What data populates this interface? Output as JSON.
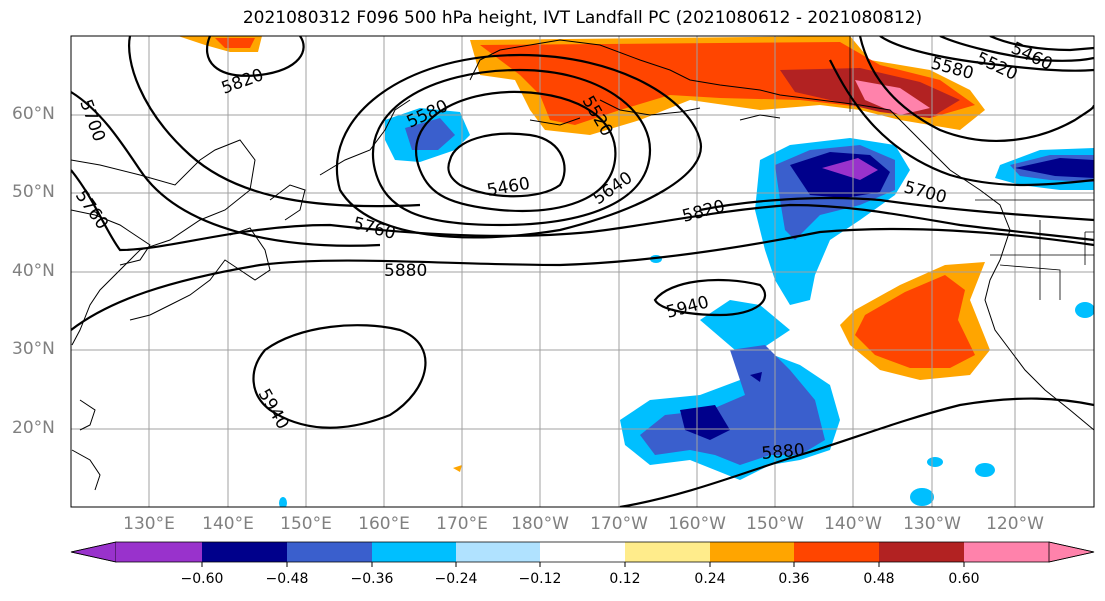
{
  "title": "2021080312 F096 500 hPa height, IVT Landfall PC (2021080612 - 2021080812)",
  "lon_labels": [
    "130°E",
    "140°E",
    "150°E",
    "160°E",
    "170°E",
    "180°W",
    "170°W",
    "160°W",
    "150°W",
    "140°W",
    "130°W",
    "120°W"
  ],
  "lat_labels": [
    "60°N",
    "50°N",
    "40°N",
    "30°N",
    "20°N"
  ],
  "colorbar": {
    "ticks": [
      "−0.60",
      "−0.48",
      "−0.36",
      "−0.24",
      "−0.12",
      "0.12",
      "0.24",
      "0.36",
      "0.48",
      "0.60"
    ],
    "colors": [
      "#9932cc",
      "#00008b",
      "#3a5fcd",
      "#00bfff",
      "#b0e2ff",
      "#ffffff",
      "#ffec8b",
      "#ffa500",
      "#ff4500",
      "#b22222",
      "#ff82ab"
    ]
  },
  "contour_labels": [
    "5820",
    "5700",
    "5760",
    "5580",
    "5520",
    "5460",
    "5640",
    "5760",
    "5820",
    "5880",
    "5940",
    "5940",
    "5880",
    "5700",
    "5580",
    "5520",
    "5460"
  ]
}
